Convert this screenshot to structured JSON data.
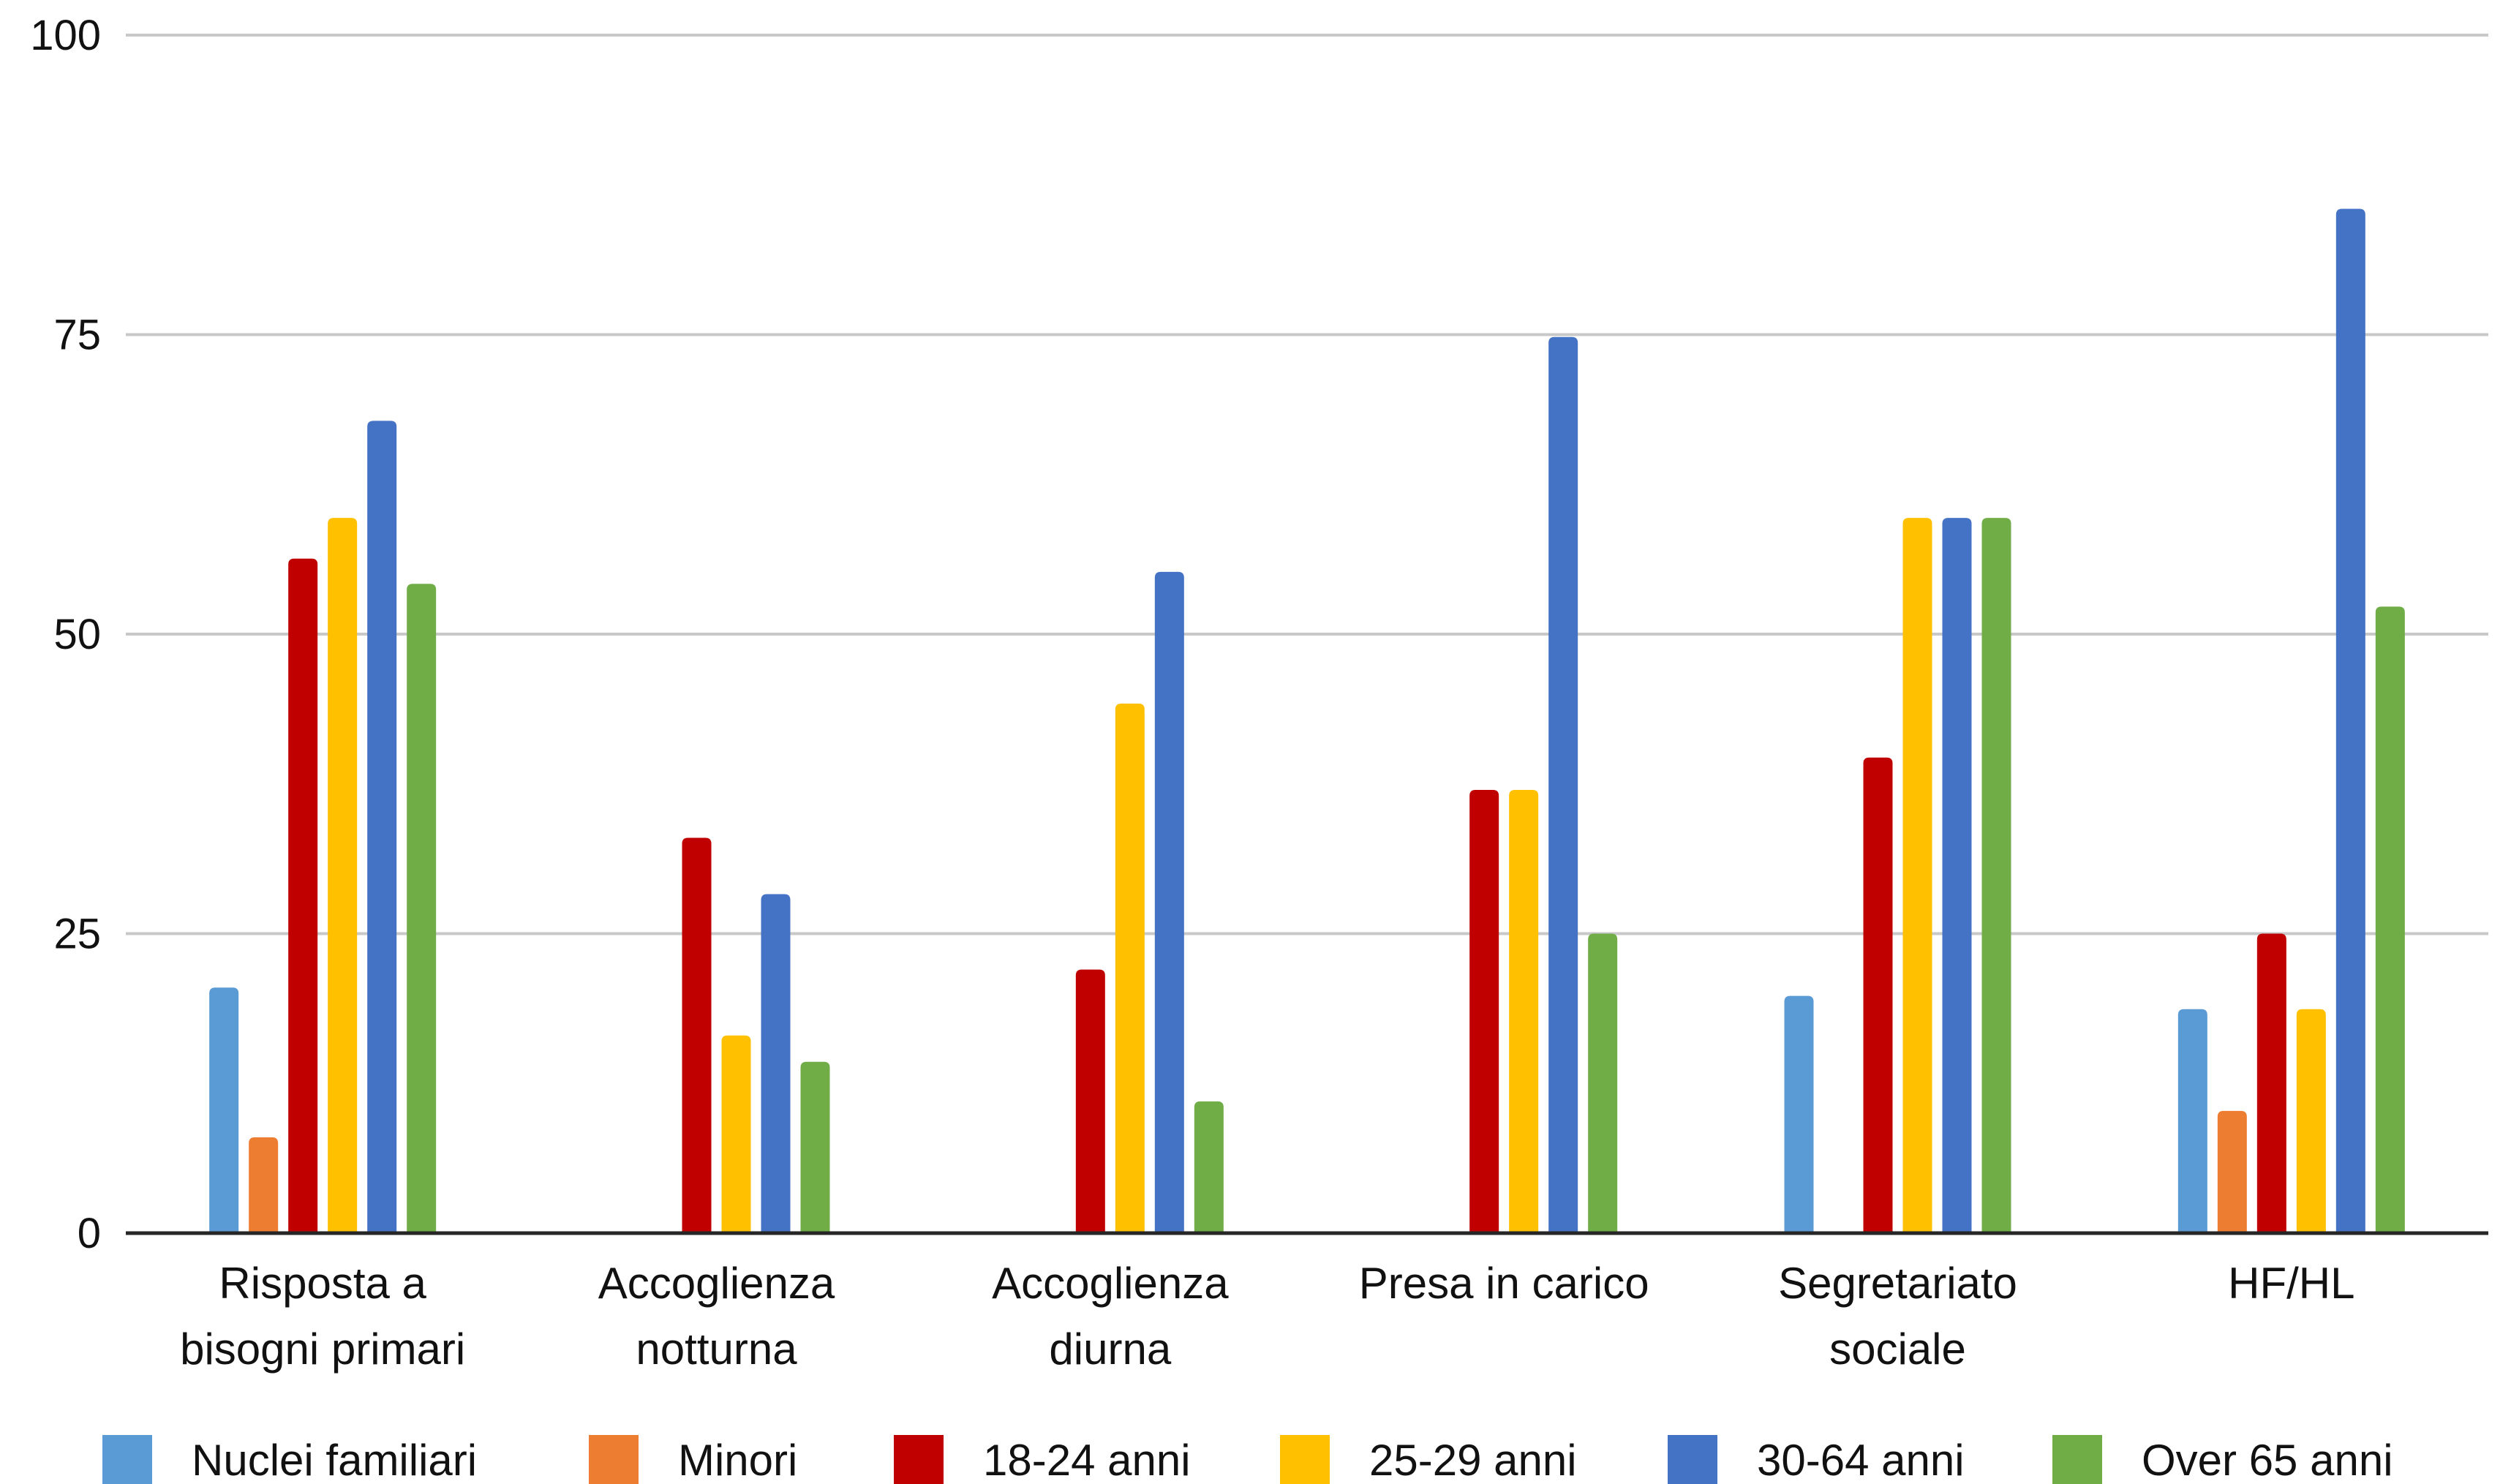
{
  "chart_data": {
    "type": "bar",
    "title": "",
    "xlabel": "",
    "ylabel": "",
    "ylim": [
      0,
      100
    ],
    "yticks": [
      0,
      25,
      50,
      75,
      100
    ],
    "grid": true,
    "legend": "bottom",
    "categories": [
      [
        "Risposta a",
        "bisogni primari"
      ],
      [
        "Accoglienza",
        "notturna"
      ],
      [
        "Accoglienza",
        "diurna"
      ],
      [
        "Presa in carico"
      ],
      [
        "Segretariato",
        "sociale"
      ],
      [
        "HF/HL"
      ]
    ],
    "series": [
      {
        "name": "Nuclei familiari",
        "color": "#5B9BD5",
        "values": [
          20.5,
          0,
          0,
          0,
          19.8,
          18.7
        ]
      },
      {
        "name": "Minori",
        "color": "#ED7D31",
        "values": [
          8,
          0,
          0,
          0,
          0,
          10.2
        ]
      },
      {
        "name": "18-24 anni",
        "color": "#C00000",
        "values": [
          56.3,
          33,
          22,
          37,
          39.7,
          25
        ]
      },
      {
        "name": "25-29 anni",
        "color": "#FFC000",
        "values": [
          59.7,
          16.5,
          44.2,
          37,
          59.7,
          18.7
        ]
      },
      {
        "name": "30-64 anni",
        "color": "#4472C4",
        "values": [
          67.8,
          28.3,
          55.2,
          74.8,
          59.7,
          85.5
        ]
      },
      {
        "name": "Over 65 anni",
        "color": "#70AD47",
        "values": [
          54.2,
          14.3,
          11,
          25,
          59.7,
          52.3
        ]
      }
    ]
  }
}
